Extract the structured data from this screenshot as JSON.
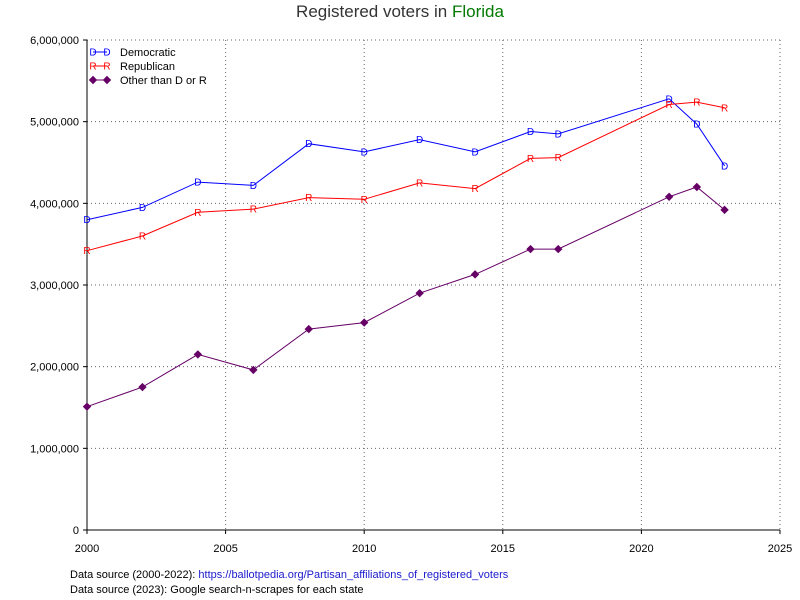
{
  "chart_data": {
    "type": "line",
    "title": "Registered voters in",
    "title_highlight": "Florida",
    "title_highlight_color": "#007a00",
    "xlabel": "",
    "ylabel": "",
    "xlim": [
      2000,
      2025
    ],
    "ylim": [
      0,
      6000000
    ],
    "x_ticks": [
      2000,
      2005,
      2010,
      2015,
      2020,
      2025
    ],
    "y_ticks": [
      0,
      1000000,
      2000000,
      3000000,
      4000000,
      5000000,
      6000000
    ],
    "grid": true,
    "legend_position": "top-left",
    "series": [
      {
        "name": "Democratic",
        "color": "#0000ff",
        "marker": "D",
        "x": [
          2000,
          2002,
          2004,
          2006,
          2008,
          2010,
          2012,
          2014,
          2016,
          2017,
          2021,
          2022,
          2023
        ],
        "y": [
          3800000,
          3950000,
          4260000,
          4220000,
          4730000,
          4630000,
          4780000,
          4630000,
          4880000,
          4850000,
          5280000,
          4970000,
          4460000
        ]
      },
      {
        "name": "Republican",
        "color": "#ff0000",
        "marker": "R",
        "x": [
          2000,
          2002,
          2004,
          2006,
          2008,
          2010,
          2012,
          2014,
          2016,
          2017,
          2021,
          2022,
          2023
        ],
        "y": [
          3420000,
          3600000,
          3890000,
          3930000,
          4070000,
          4050000,
          4250000,
          4180000,
          4550000,
          4560000,
          5210000,
          5240000,
          5170000
        ]
      },
      {
        "name": "Other than D or R",
        "color": "#660066",
        "marker": "diamond",
        "x": [
          2000,
          2002,
          2004,
          2006,
          2008,
          2010,
          2012,
          2014,
          2016,
          2017,
          2021,
          2022,
          2023
        ],
        "y": [
          1510000,
          1750000,
          2150000,
          1960000,
          2460000,
          2540000,
          2900000,
          3130000,
          3440000,
          3440000,
          4080000,
          4200000,
          3920000
        ]
      }
    ]
  },
  "footer": {
    "source1_label": "Data source (2000-2022):",
    "source1_link": "https://ballotpedia.org/Partisan_affiliations_of_registered_voters",
    "source2_label": "Data source (2023):",
    "source2_text": "Google search-n-scrapes for each state"
  }
}
